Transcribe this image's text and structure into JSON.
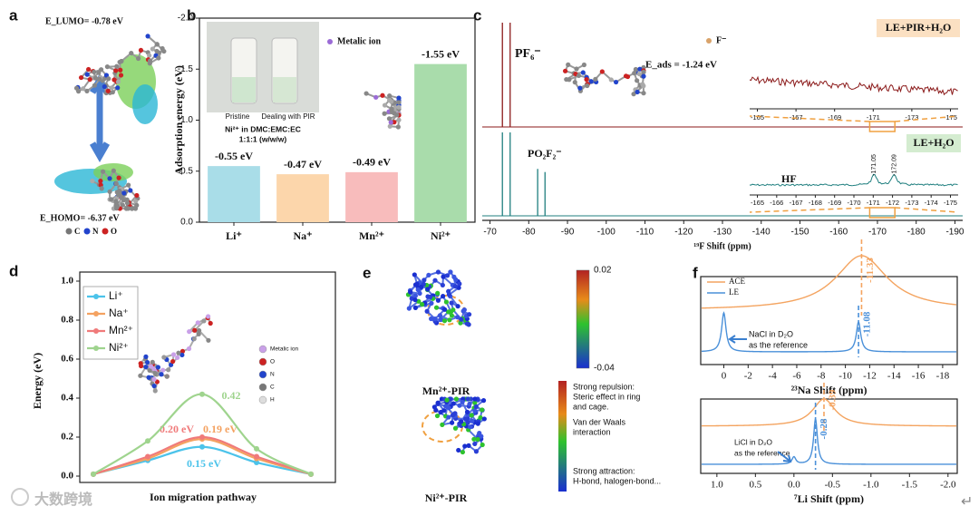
{
  "panel_labels": [
    "a",
    "b",
    "c",
    "d",
    "e",
    "f"
  ],
  "panel_a": {
    "lumo": "E_LUMO= -0.78 eV",
    "homo": "E_HOMO= -6.37 eV",
    "atoms": [
      "C",
      "N",
      "O"
    ]
  },
  "chart_data": [
    {
      "type": "bar",
      "ylabel": "Adsorption energy (eV)",
      "categories": [
        "Li⁺",
        "Na⁺",
        "Mn²⁺",
        "Ni²⁺"
      ],
      "values": [
        -0.55,
        -0.47,
        -0.49,
        -1.55
      ],
      "value_labels": [
        "-0.55 eV",
        "-0.47 eV",
        "-0.49 eV",
        "-1.55 eV"
      ],
      "colors": [
        "#a9dde8",
        "#fcd6ab",
        "#f8bcbc",
        "#a9dcab"
      ],
      "ylim": [
        0,
        -2.0
      ],
      "yticks": [
        {
          "value": 0,
          "label": "0.0"
        },
        -0.5,
        {
          "value": -1.0,
          "label": "-1.0"
        },
        -1.5,
        {
          "value": -2.0,
          "label": "-2.0"
        }
      ],
      "inset": {
        "photo_labels": [
          "Pristine",
          "Dealing with PIR"
        ],
        "lines": [
          "Ni²⁺ in DMC:EMC:EC",
          "1:1:1 (w/w/w)"
        ],
        "legend": "Metalic ion"
      }
    },
    {
      "type": "spectrum",
      "xlabel": "¹⁹F Shift (ppm)",
      "xlim": [
        -68,
        -192
      ],
      "xticks": [
        -70,
        -80,
        -90,
        -100,
        -110,
        -120,
        -130,
        -140,
        -150,
        -160,
        -170,
        -180,
        -190
      ],
      "series": [
        {
          "name": "LE+PIR+H₂O",
          "color": "#8b1a1a",
          "x": [
            -73.2,
            -75.2
          ],
          "values": [
            100,
            100
          ]
        },
        {
          "name": "LE+H₂O",
          "color": "#1f7f7f",
          "x": [
            -73.2,
            -75.2,
            -82.3,
            -84.2
          ],
          "values": [
            80,
            80,
            45,
            42
          ]
        }
      ],
      "annotations": [
        "PF₆⁻",
        "PO₂F₂⁻",
        "F⁻",
        "E_ads = -1.24 eV",
        "HF"
      ],
      "inset_top": {
        "xlim": [
          -164.6,
          -175.4
        ],
        "xticks": [
          -165,
          -167,
          -169,
          -171,
          -173,
          -175
        ]
      },
      "inset_bottom": {
        "xlim": [
          -164.6,
          -175.4
        ],
        "xticks": [
          -165,
          -166,
          -167,
          -168,
          -169,
          -170,
          -171,
          -172,
          -173,
          -174,
          -175
        ],
        "x": [
          -171.05,
          -172.09
        ]
      }
    },
    {
      "type": "line",
      "ylabel": "Energy (eV)",
      "xlabel": "Ion migration pathway",
      "categories": [
        null,
        null,
        null,
        null,
        null
      ],
      "ylim": [
        0,
        1.0
      ],
      "yticks": [
        {
          "value": 0,
          "label": "0.0"
        },
        0.2,
        0.4,
        0.6,
        0.8,
        {
          "value": 1.0,
          "label": "1.0"
        }
      ],
      "legend": "upper left",
      "series": [
        {
          "name": "Li⁺",
          "color": "#4cc3ea",
          "values": [
            0.01,
            0.08,
            0.15,
            0.07,
            0.01
          ],
          "value_labels": [
            null,
            null,
            "0.15 eV",
            null,
            null
          ]
        },
        {
          "name": "Na⁺",
          "color": "#f4a261",
          "values": [
            0.01,
            0.09,
            0.19,
            0.09,
            0.01
          ],
          "value_labels": [
            null,
            null,
            "0.19 eV",
            null,
            null
          ]
        },
        {
          "name": "Mn²⁺",
          "color": "#f07a7a",
          "values": [
            0.01,
            0.1,
            0.2,
            0.1,
            0.01
          ],
          "value_labels": [
            null,
            null,
            "0.20 eV",
            null,
            null
          ]
        },
        {
          "name": "Ni²⁺",
          "color": "#9fd48e",
          "values": [
            0.01,
            0.18,
            0.42,
            0.14,
            0.01
          ],
          "value_labels": [
            null,
            null,
            "0.42",
            null,
            null
          ]
        }
      ],
      "inset_atoms": [
        "Metalic ion",
        "O",
        "N",
        "C",
        "H"
      ]
    },
    {
      "type": "nmr",
      "xlabel": "²³Na Shift (ppm)",
      "xlim": [
        1.9,
        -19.2
      ],
      "xticks": [
        0,
        -2,
        -4,
        -6,
        -8,
        -10,
        -12,
        -14,
        -16,
        -18
      ],
      "series": [
        {
          "name": "ACE",
          "color": "#f4a460",
          "x": [
            -11.33
          ],
          "values": [
            60
          ]
        },
        {
          "name": "LE",
          "color": "#4a90d9",
          "x": [
            0,
            -11.08
          ],
          "values": [
            43,
            33
          ]
        }
      ],
      "reference": [
        "NaCl in D₂O",
        "as the reference"
      ]
    },
    {
      "type": "nmr",
      "xlabel": "⁷Li Shift (ppm)",
      "xlim": [
        1.21,
        -2.12
      ],
      "xticks": [
        {
          "value": 1.0,
          "label": "1.0"
        },
        0.5,
        {
          "value": 0,
          "label": "0.0"
        },
        -0.5,
        {
          "value": -1.0,
          "label": "-1.0"
        },
        -1.5,
        {
          "value": -2.0,
          "label": "-2.0"
        }
      ],
      "series": [
        {
          "name": "ACE",
          "color": "#f4a460",
          "x": [
            -0.39
          ],
          "values": [
            30
          ]
        },
        {
          "name": "LE",
          "color": "#4a90d9",
          "x": [
            0,
            -0.28
          ],
          "values": [
            8,
            50
          ]
        }
      ],
      "reference": [
        "LiCl in D₂O",
        "as the reference"
      ]
    }
  ],
  "panel_e": {
    "labels": [
      "Mn²⁺-PIR",
      "Ni²⁺-PIR"
    ],
    "colorbar_ticks": [
      0.02,
      -0.04
    ],
    "legend": [
      [
        "Strong repulsion:",
        "Steric effect in ring",
        "and cage."
      ],
      [
        "Van der Waals",
        "interaction"
      ],
      [
        "Strong attraction:",
        "H-bond, halogen-bond..."
      ]
    ]
  },
  "watermark": "大数跨境",
  "corner_mark": "↵"
}
